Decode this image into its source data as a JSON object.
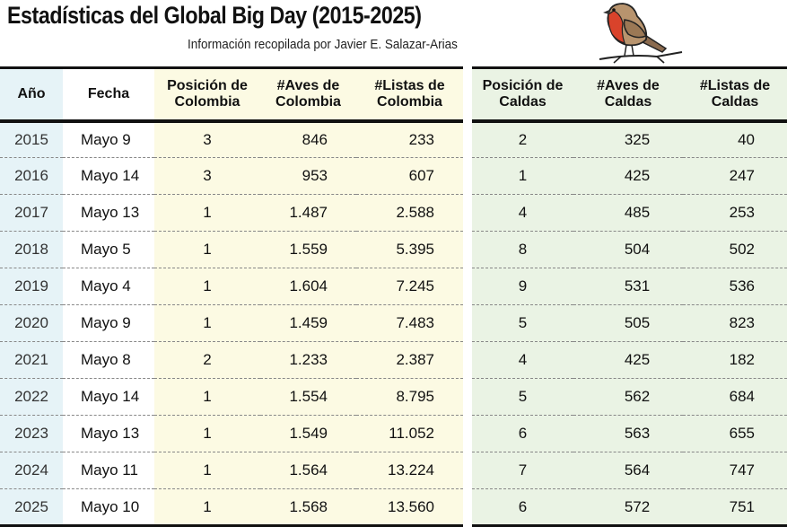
{
  "title": "Estadísticas del Global Big Day (2015-2025)",
  "subtitle": "Información recopilada por Javier E. Salazar-Arias",
  "colors": {
    "year_column_bg": "#e6f3f7",
    "colombia_columns_bg": "#fcfae3",
    "caldas_columns_bg": "#eaf3e4"
  },
  "bird_illustration": "robin-on-branch",
  "headers": {
    "anio": "Año",
    "fecha": "Fecha",
    "pos_colombia": [
      "Posición de",
      "Colombia"
    ],
    "aves_colombia": [
      "#Aves de",
      "Colombia"
    ],
    "listas_colombia": [
      "#Listas de",
      "Colombia"
    ],
    "pos_caldas": [
      "Posición de",
      "Caldas"
    ],
    "aves_caldas": [
      "#Aves de",
      "Caldas"
    ],
    "listas_caldas": [
      "#Listas de",
      "Caldas"
    ]
  },
  "rows": [
    {
      "anio": "2015",
      "fecha": "Mayo 9",
      "pos_colombia": "3",
      "aves_colombia": "846",
      "listas_colombia": "233",
      "pos_caldas": "2",
      "aves_caldas": "325",
      "listas_caldas": "40"
    },
    {
      "anio": "2016",
      "fecha": "Mayo 14",
      "pos_colombia": "3",
      "aves_colombia": "953",
      "listas_colombia": "607",
      "pos_caldas": "1",
      "aves_caldas": "425",
      "listas_caldas": "247"
    },
    {
      "anio": "2017",
      "fecha": "Mayo 13",
      "pos_colombia": "1",
      "aves_colombia": "1.487",
      "listas_colombia": "2.588",
      "pos_caldas": "4",
      "aves_caldas": "485",
      "listas_caldas": "253"
    },
    {
      "anio": "2018",
      "fecha": "Mayo 5",
      "pos_colombia": "1",
      "aves_colombia": "1.559",
      "listas_colombia": "5.395",
      "pos_caldas": "8",
      "aves_caldas": "504",
      "listas_caldas": "502"
    },
    {
      "anio": "2019",
      "fecha": "Mayo 4",
      "pos_colombia": "1",
      "aves_colombia": "1.604",
      "listas_colombia": "7.245",
      "pos_caldas": "9",
      "aves_caldas": "531",
      "listas_caldas": "536"
    },
    {
      "anio": "2020",
      "fecha": "Mayo 9",
      "pos_colombia": "1",
      "aves_colombia": "1.459",
      "listas_colombia": "7.483",
      "pos_caldas": "5",
      "aves_caldas": "505",
      "listas_caldas": "823"
    },
    {
      "anio": "2021",
      "fecha": "Mayo 8",
      "pos_colombia": "2",
      "aves_colombia": "1.233",
      "listas_colombia": "2.387",
      "pos_caldas": "4",
      "aves_caldas": "425",
      "listas_caldas": "182"
    },
    {
      "anio": "2022",
      "fecha": "Mayo 14",
      "pos_colombia": "1",
      "aves_colombia": "1.554",
      "listas_colombia": "8.795",
      "pos_caldas": "5",
      "aves_caldas": "562",
      "listas_caldas": "684"
    },
    {
      "anio": "2023",
      "fecha": "Mayo 13",
      "pos_colombia": "1",
      "aves_colombia": "1.549",
      "listas_colombia": "11.052",
      "pos_caldas": "6",
      "aves_caldas": "563",
      "listas_caldas": "655"
    },
    {
      "anio": "2024",
      "fecha": "Mayo 11",
      "pos_colombia": "1",
      "aves_colombia": "1.564",
      "listas_colombia": "13.224",
      "pos_caldas": "7",
      "aves_caldas": "564",
      "listas_caldas": "747"
    },
    {
      "anio": "2025",
      "fecha": "Mayo 10",
      "pos_colombia": "1",
      "aves_colombia": "1.568",
      "listas_colombia": "13.560",
      "pos_caldas": "6",
      "aves_caldas": "572",
      "listas_caldas": "751"
    }
  ]
}
